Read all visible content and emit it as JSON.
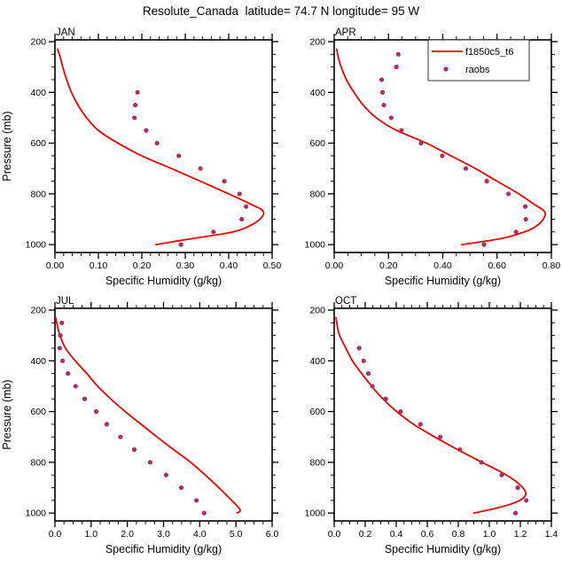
{
  "page": {
    "title": "Resolute_Canada  latitude= 74.7 N longitude= 95 W"
  },
  "colors": {
    "model_line": "#F40000",
    "raobs_dot": "#AD2E5F",
    "axis": "#000000",
    "legend_border": "#333333",
    "background": "#FFFFFF"
  },
  "legend": {
    "entries": [
      {
        "label": "f1850c5_t6",
        "marker": "line"
      },
      {
        "label": "raobs",
        "marker": "dot"
      }
    ]
  },
  "axis_text": {
    "xlabel": "Specific Humidity (g/kg)",
    "ylabel": "Pressure (mb)"
  },
  "chart_data": [
    {
      "type": "line",
      "panel_label": "JAN",
      "xlabel": "Specific Humidity (g/kg)",
      "ylabel": "Pressure (mb)",
      "show_ylabel": true,
      "show_legend": false,
      "xlim": [
        0.0,
        0.5
      ],
      "xticks": [
        {
          "v": 0.0,
          "label": "0.00"
        },
        {
          "v": 0.1,
          "label": "0.10"
        },
        {
          "v": 0.2,
          "label": "0.20"
        },
        {
          "v": 0.3,
          "label": "0.30"
        },
        {
          "v": 0.4,
          "label": "0.40"
        },
        {
          "v": 0.5,
          "label": "0.50"
        }
      ],
      "x_minor_step": 0.02,
      "ylim": [
        193,
        1031
      ],
      "yticks": [
        {
          "v": 200,
          "label": "200"
        },
        {
          "v": 400,
          "label": "400"
        },
        {
          "v": 600,
          "label": "600"
        },
        {
          "v": 800,
          "label": "800"
        },
        {
          "v": 1000,
          "label": "1000"
        }
      ],
      "y_minor_step": 50,
      "series": [
        {
          "name": "f1850c5_t6",
          "type": "line",
          "points": [
            [
              230,
              0.006
            ],
            [
              260,
              0.012
            ],
            [
              300,
              0.018
            ],
            [
              350,
              0.027
            ],
            [
              400,
              0.038
            ],
            [
              450,
              0.053
            ],
            [
              500,
              0.073
            ],
            [
              550,
              0.1
            ],
            [
              600,
              0.145
            ],
            [
              650,
              0.2
            ],
            [
              700,
              0.268
            ],
            [
              750,
              0.335
            ],
            [
              800,
              0.4
            ],
            [
              840,
              0.45
            ],
            [
              865,
              0.478
            ],
            [
              890,
              0.477
            ],
            [
              920,
              0.455
            ],
            [
              950,
              0.41
            ],
            [
              975,
              0.32
            ],
            [
              1000,
              0.232
            ]
          ]
        },
        {
          "name": "raobs",
          "type": "scatter",
          "points": [
            [
              400,
              0.19
            ],
            [
              450,
              0.185
            ],
            [
              500,
              0.183
            ],
            [
              550,
              0.21
            ],
            [
              600,
              0.235
            ],
            [
              650,
              0.285
            ],
            [
              700,
              0.335
            ],
            [
              750,
              0.39
            ],
            [
              800,
              0.425
            ],
            [
              850,
              0.44
            ],
            [
              900,
              0.43
            ],
            [
              950,
              0.365
            ],
            [
              1000,
              0.29
            ]
          ]
        }
      ]
    },
    {
      "type": "line",
      "panel_label": "APR",
      "xlabel": "Specific Humidity (g/kg)",
      "ylabel": "Pressure (mb)",
      "show_ylabel": false,
      "show_legend": true,
      "xlim": [
        0.0,
        0.8
      ],
      "xticks": [
        {
          "v": 0.0,
          "label": "0.00"
        },
        {
          "v": 0.2,
          "label": "0.20"
        },
        {
          "v": 0.4,
          "label": "0.40"
        },
        {
          "v": 0.6,
          "label": "0.60"
        },
        {
          "v": 0.8,
          "label": "0.80"
        }
      ],
      "x_minor_step": 0.05,
      "ylim": [
        193,
        1031
      ],
      "yticks": [
        {
          "v": 200,
          "label": "200"
        },
        {
          "v": 400,
          "label": "400"
        },
        {
          "v": 600,
          "label": "600"
        },
        {
          "v": 800,
          "label": "800"
        },
        {
          "v": 1000,
          "label": "1000"
        }
      ],
      "y_minor_step": 50,
      "series": [
        {
          "name": "f1850c5_t6",
          "type": "line",
          "points": [
            [
              230,
              0.009
            ],
            [
              270,
              0.017
            ],
            [
              300,
              0.026
            ],
            [
              350,
              0.045
            ],
            [
              400,
              0.073
            ],
            [
              450,
              0.107
            ],
            [
              500,
              0.155
            ],
            [
              550,
              0.23
            ],
            [
              600,
              0.34
            ],
            [
              650,
              0.43
            ],
            [
              700,
              0.52
            ],
            [
              750,
              0.6
            ],
            [
              800,
              0.68
            ],
            [
              840,
              0.735
            ],
            [
              870,
              0.775
            ],
            [
              900,
              0.77
            ],
            [
              930,
              0.74
            ],
            [
              950,
              0.7
            ],
            [
              975,
              0.62
            ],
            [
              1000,
              0.47
            ]
          ]
        },
        {
          "name": "raobs",
          "type": "scatter",
          "points": [
            [
              250,
              0.236
            ],
            [
              300,
              0.229
            ],
            [
              350,
              0.175
            ],
            [
              400,
              0.178
            ],
            [
              450,
              0.183
            ],
            [
              500,
              0.21
            ],
            [
              550,
              0.248
            ],
            [
              600,
              0.32
            ],
            [
              650,
              0.398
            ],
            [
              700,
              0.485
            ],
            [
              750,
              0.562
            ],
            [
              800,
              0.642
            ],
            [
              850,
              0.704
            ],
            [
              900,
              0.706
            ],
            [
              950,
              0.67
            ],
            [
              1000,
              0.552
            ]
          ]
        }
      ]
    },
    {
      "type": "line",
      "panel_label": "JUL",
      "xlabel": "Specific Humidity (g/kg)",
      "ylabel": "Pressure (mb)",
      "show_ylabel": true,
      "show_legend": false,
      "xlim": [
        0.0,
        6.0
      ],
      "xticks": [
        {
          "v": 0.0,
          "label": "0.0"
        },
        {
          "v": 1.0,
          "label": "1.0"
        },
        {
          "v": 2.0,
          "label": "2.0"
        },
        {
          "v": 3.0,
          "label": "3.0"
        },
        {
          "v": 4.0,
          "label": "4.0"
        },
        {
          "v": 5.0,
          "label": "5.0"
        },
        {
          "v": 6.0,
          "label": "6.0"
        }
      ],
      "x_minor_step": 0.25,
      "ylim": [
        193,
        1031
      ],
      "yticks": [
        {
          "v": 200,
          "label": "200"
        },
        {
          "v": 400,
          "label": "400"
        },
        {
          "v": 600,
          "label": "600"
        },
        {
          "v": 800,
          "label": "800"
        },
        {
          "v": 1000,
          "label": "1000"
        }
      ],
      "y_minor_step": 50,
      "series": [
        {
          "name": "f1850c5_t6",
          "type": "line",
          "points": [
            [
              230,
              0.02
            ],
            [
              270,
              0.08
            ],
            [
              300,
              0.14
            ],
            [
              350,
              0.29
            ],
            [
              400,
              0.56
            ],
            [
              450,
              0.88
            ],
            [
              500,
              1.18
            ],
            [
              550,
              1.54
            ],
            [
              600,
              1.94
            ],
            [
              650,
              2.38
            ],
            [
              700,
              2.82
            ],
            [
              750,
              3.28
            ],
            [
              800,
              3.75
            ],
            [
              850,
              4.15
            ],
            [
              900,
              4.53
            ],
            [
              950,
              4.88
            ],
            [
              975,
              5.05
            ],
            [
              990,
              5.12
            ],
            [
              1000,
              5.03
            ]
          ]
        },
        {
          "name": "raobs",
          "type": "scatter",
          "points": [
            [
              250,
              0.19
            ],
            [
              300,
              0.15
            ],
            [
              350,
              0.13
            ],
            [
              400,
              0.21
            ],
            [
              450,
              0.36
            ],
            [
              500,
              0.57
            ],
            [
              550,
              0.82
            ],
            [
              600,
              1.14
            ],
            [
              650,
              1.43
            ],
            [
              700,
              1.81
            ],
            [
              750,
              2.19
            ],
            [
              800,
              2.63
            ],
            [
              850,
              3.07
            ],
            [
              900,
              3.49
            ],
            [
              950,
              3.91
            ],
            [
              1000,
              4.12
            ]
          ]
        }
      ]
    },
    {
      "type": "line",
      "panel_label": "OCT",
      "xlabel": "Specific Humidity (g/kg)",
      "ylabel": "Pressure (mb)",
      "show_ylabel": false,
      "show_legend": false,
      "xlim": [
        0.0,
        1.4
      ],
      "xticks": [
        {
          "v": 0.0,
          "label": "0.0"
        },
        {
          "v": 0.2,
          "label": "0.2"
        },
        {
          "v": 0.4,
          "label": "0.4"
        },
        {
          "v": 0.6,
          "label": "0.6"
        },
        {
          "v": 0.8,
          "label": "0.8"
        },
        {
          "v": 1.0,
          "label": "1.0"
        },
        {
          "v": 1.2,
          "label": "1.2"
        },
        {
          "v": 1.4,
          "label": "1.4"
        }
      ],
      "x_minor_step": 0.05,
      "ylim": [
        193,
        1031
      ],
      "yticks": [
        {
          "v": 200,
          "label": "200"
        },
        {
          "v": 400,
          "label": "400"
        },
        {
          "v": 600,
          "label": "600"
        },
        {
          "v": 800,
          "label": "800"
        },
        {
          "v": 1000,
          "label": "1000"
        }
      ],
      "y_minor_step": 50,
      "series": [
        {
          "name": "f1850c5_t6",
          "type": "line",
          "points": [
            [
              230,
              0.012
            ],
            [
              270,
              0.022
            ],
            [
              300,
              0.035
            ],
            [
              350,
              0.075
            ],
            [
              400,
              0.118
            ],
            [
              450,
              0.177
            ],
            [
              500,
              0.242
            ],
            [
              550,
              0.314
            ],
            [
              600,
              0.403
            ],
            [
              650,
              0.511
            ],
            [
              700,
              0.648
            ],
            [
              750,
              0.796
            ],
            [
              800,
              0.953
            ],
            [
              850,
              1.11
            ],
            [
              890,
              1.2
            ],
            [
              920,
              1.235
            ],
            [
              940,
              1.22
            ],
            [
              960,
              1.16
            ],
            [
              980,
              1.05
            ],
            [
              1000,
              0.9
            ]
          ]
        },
        {
          "name": "raobs",
          "type": "scatter",
          "points": [
            [
              350,
              0.161
            ],
            [
              400,
              0.19
            ],
            [
              450,
              0.22
            ],
            [
              500,
              0.246
            ],
            [
              550,
              0.332
            ],
            [
              600,
              0.428
            ],
            [
              650,
              0.556
            ],
            [
              700,
              0.684
            ],
            [
              750,
              0.81
            ],
            [
              800,
              0.949
            ],
            [
              850,
              1.08
            ],
            [
              900,
              1.183
            ],
            [
              950,
              1.238
            ],
            [
              1000,
              1.169
            ]
          ]
        }
      ]
    }
  ]
}
